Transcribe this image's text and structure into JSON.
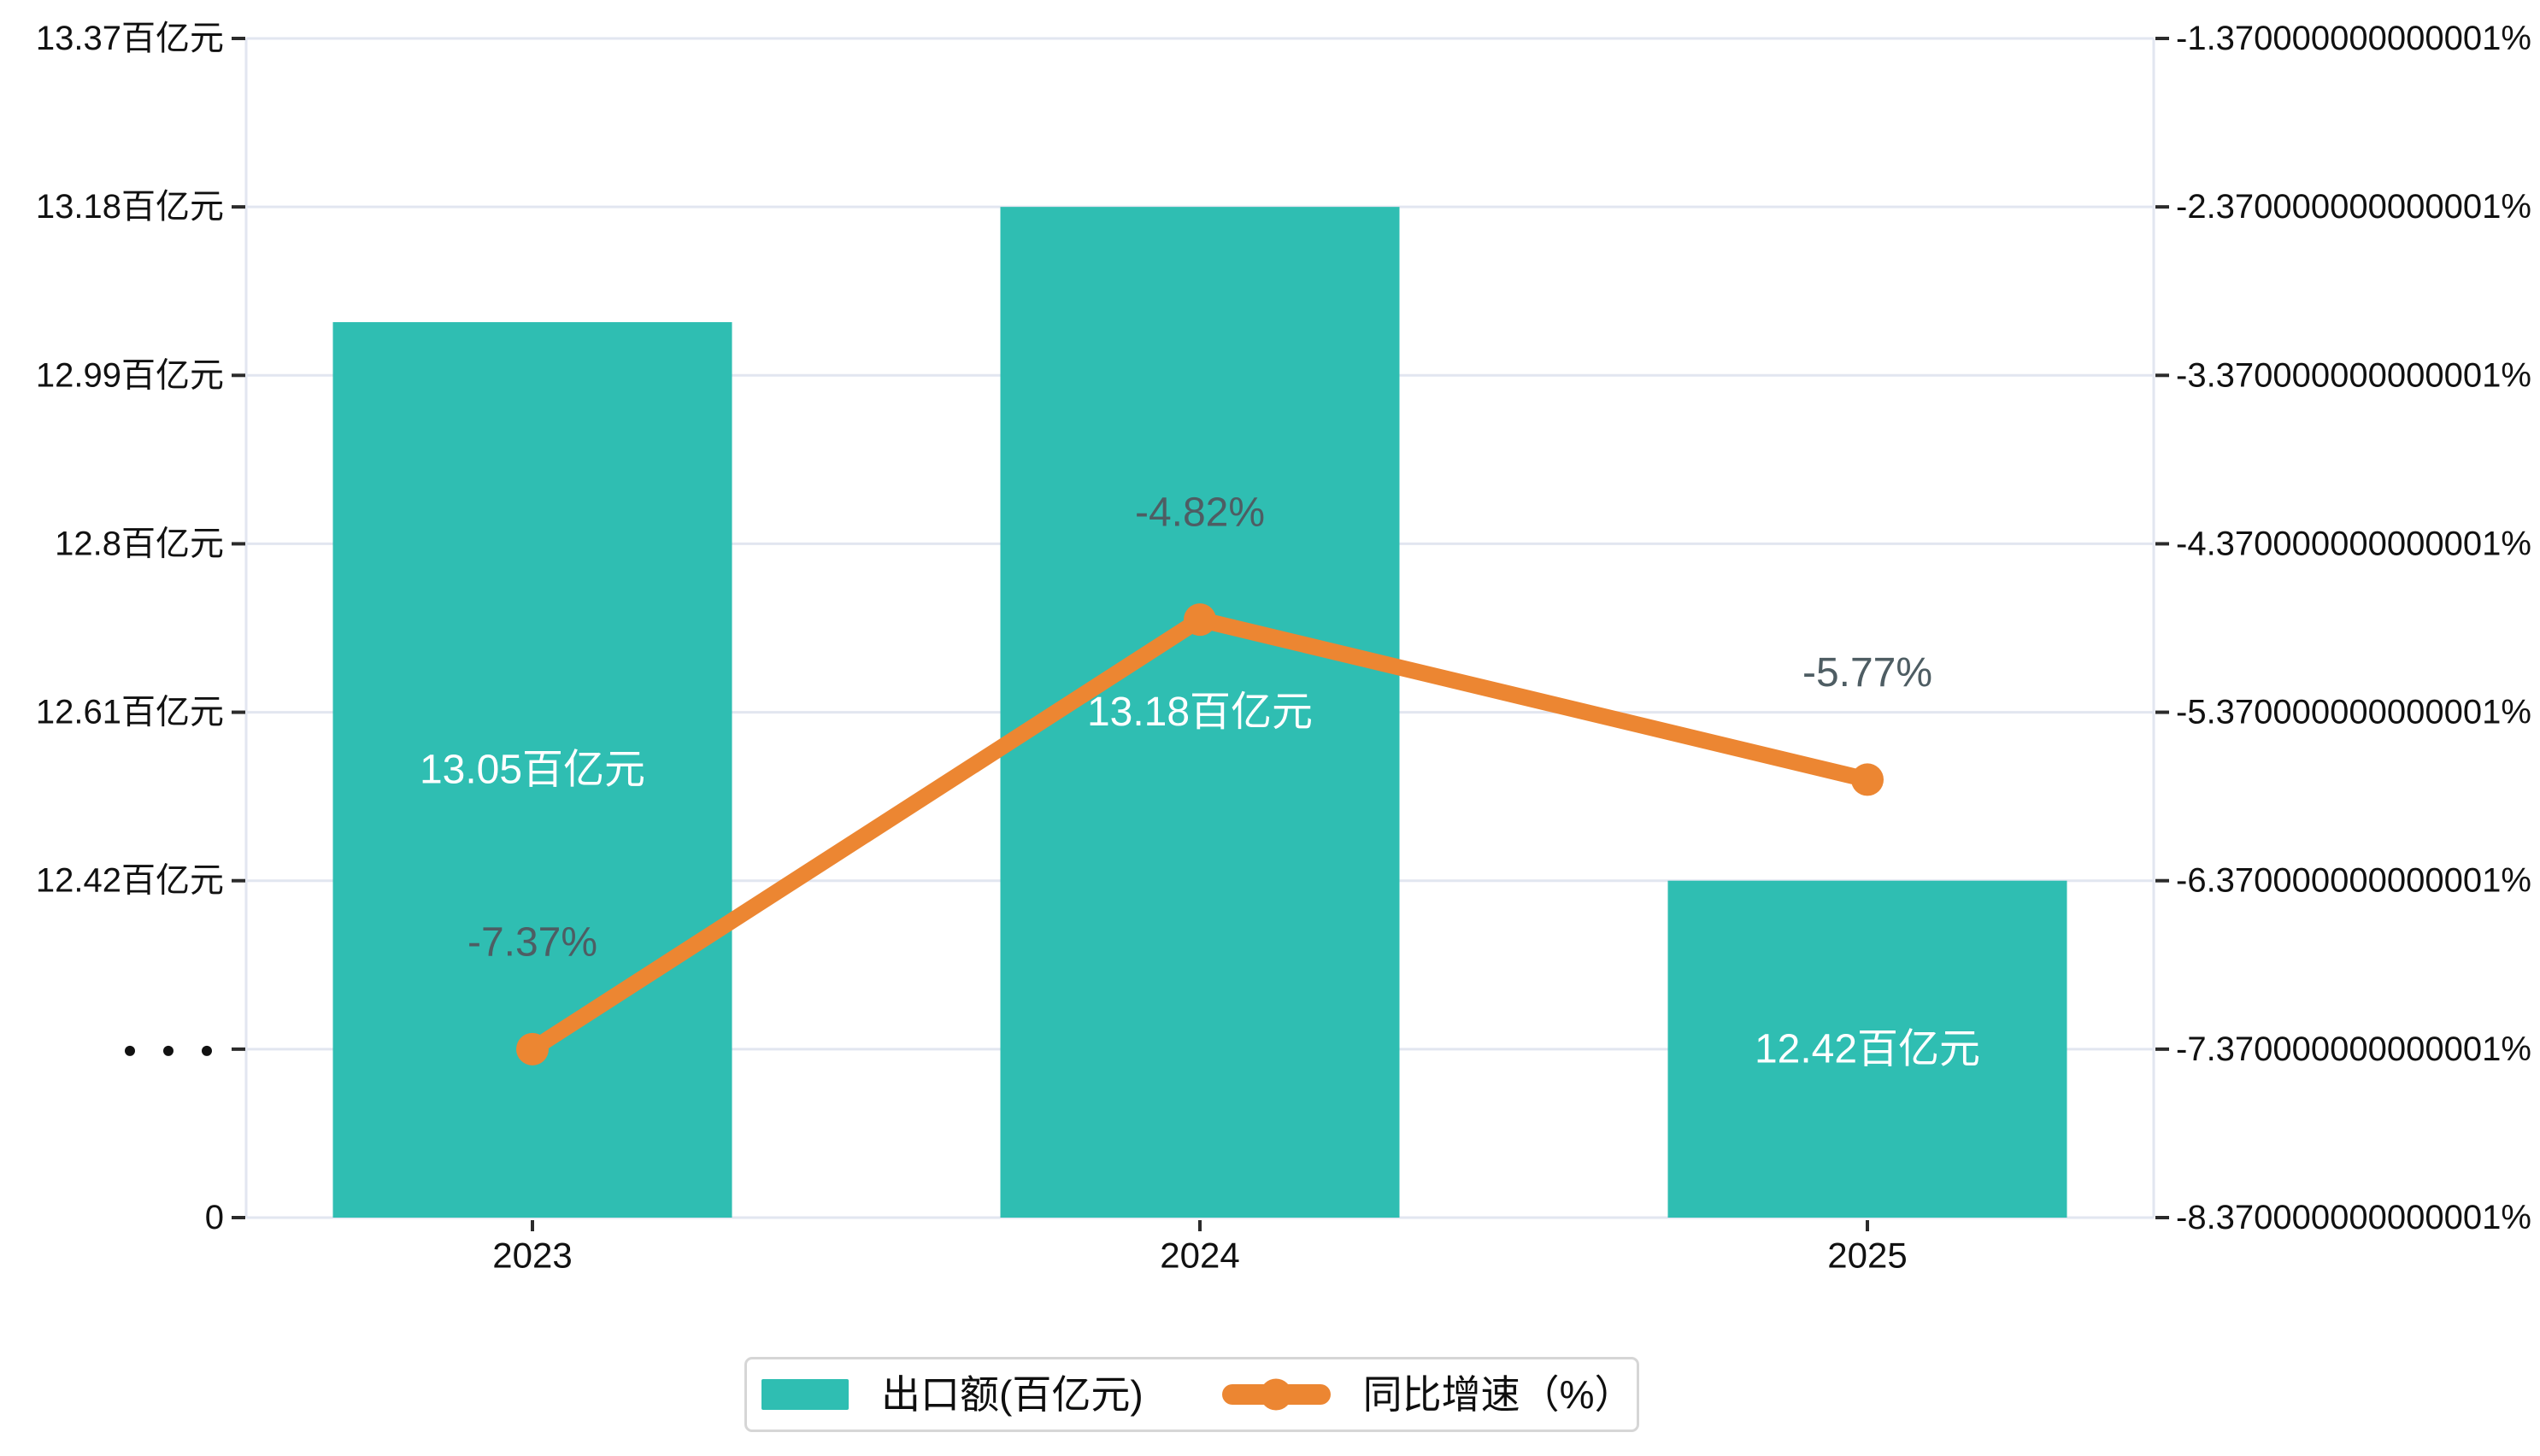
{
  "chart_data": {
    "type": "bar",
    "subtype": "bar-line-combo",
    "title": "",
    "categories": [
      "2023",
      "2024",
      "2025"
    ],
    "series": [
      {
        "name": "出口额(百亿元)",
        "type": "bar",
        "axis": "left",
        "values": [
          13.05,
          13.18,
          12.42
        ],
        "data_labels": [
          "13.05百亿元",
          "13.18百亿元",
          "12.42百亿元"
        ],
        "color": "#2FBEB2",
        "label_color": "#FFFFFF"
      },
      {
        "name": "同比增速（%）",
        "type": "line",
        "axis": "right",
        "values": [
          -7.37,
          -4.82,
          -5.77
        ],
        "data_labels": [
          "-7.37%",
          "-4.82%",
          "-5.77%"
        ],
        "color": "#EC8632",
        "label_color": "#4E5D63"
      }
    ],
    "left_axis": {
      "tick_labels": [
        "13.37百亿元",
        "13.18百亿元",
        "12.99百亿元",
        "12.8百亿元",
        "12.61百亿元",
        "12.42百亿元",
        "···",
        "0"
      ],
      "tick_values_top_to_bottom": [
        13.37,
        13.18,
        12.99,
        12.8,
        12.61,
        12.42,
        null,
        0
      ],
      "top_value": 13.37,
      "tick_step": -0.19,
      "axis_break": true,
      "break_symbol": "···"
    },
    "right_axis": {
      "tick_labels": [
        "-1.370000000000001%",
        "-2.370000000000001%",
        "-3.370000000000001%",
        "-4.370000000000001%",
        "-5.370000000000001%",
        "-6.370000000000001%",
        "-7.370000000000001%",
        "-8.370000000000001%"
      ],
      "top_value": -1.37,
      "tick_step": -1
    },
    "x_axis_labels": [
      "2023",
      "2024",
      "2025"
    ],
    "legend": {
      "position": "bottom",
      "items": [
        "出口额(百亿元)",
        "同比增速（%）"
      ]
    },
    "grid": true,
    "background": "#FFFFFF"
  },
  "colors": {
    "bar": "#2FBEB2",
    "line": "#EC8632",
    "grid_line": "#E2E6F0",
    "tick_mark": "#2B2B2B",
    "axis_text": "#111111",
    "pct_label": "#4E5D63",
    "bar_label": "#FFFFFF",
    "legend_border": "#D6D6D6"
  }
}
